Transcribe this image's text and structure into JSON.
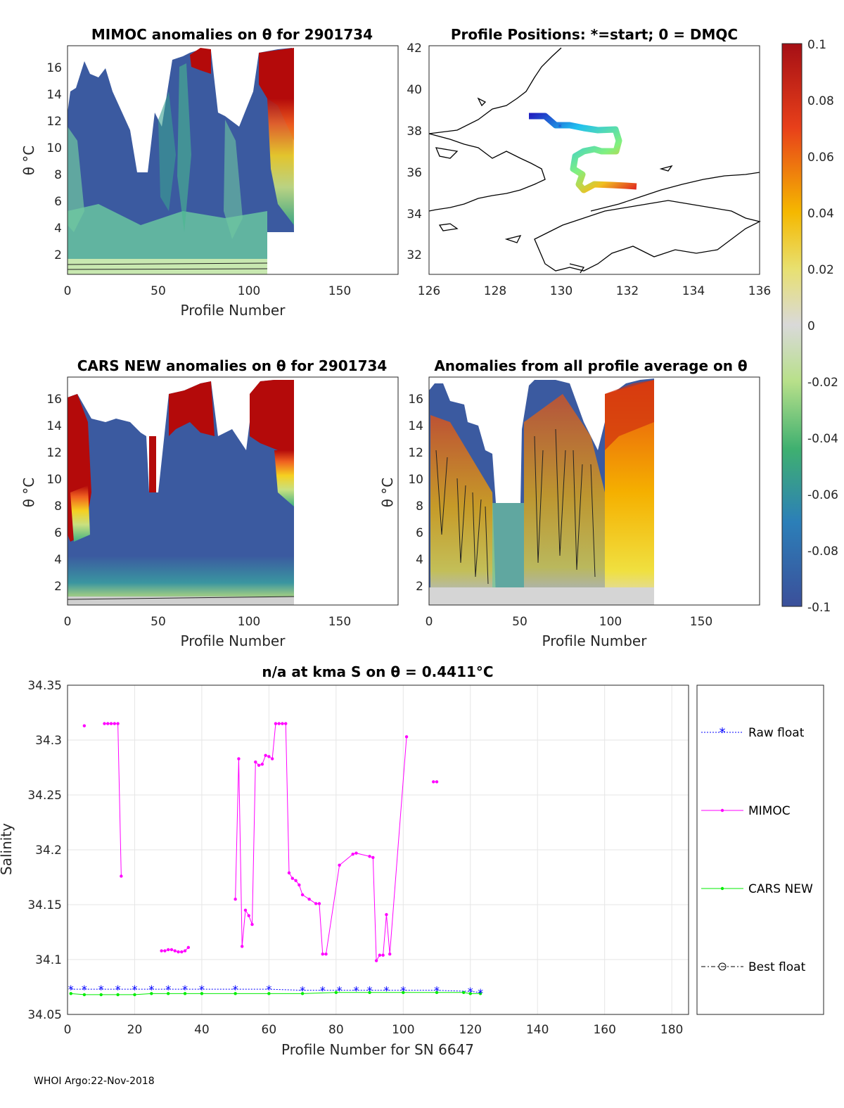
{
  "footer": "WHOI Argo:22-Nov-2018",
  "panel_mimoc": {
    "title": "MIMOC anomalies on θ  for 2901734",
    "xlabel": "Profile Number",
    "ylabel": "θ °C",
    "xticks": [
      "0",
      "50",
      "100",
      "150"
    ],
    "yticks": [
      "2",
      "4",
      "6",
      "8",
      "10",
      "12",
      "14",
      "16"
    ]
  },
  "panel_map": {
    "title": "Profile Positions: *=start; 0 = DMQC",
    "xticks": [
      "126",
      "128",
      "130",
      "132",
      "134",
      "136"
    ],
    "yticks": [
      "32",
      "34",
      "36",
      "38",
      "40",
      "42"
    ]
  },
  "panel_cars": {
    "title": "CARS NEW anomalies on θ for 2901734",
    "xlabel": "Profile Number",
    "ylabel": "θ °C",
    "xticks": [
      "0",
      "50",
      "100",
      "150"
    ],
    "yticks": [
      "2",
      "4",
      "6",
      "8",
      "10",
      "12",
      "14",
      "16"
    ]
  },
  "panel_avg": {
    "title": "Anomalies from all profile average on θ",
    "xlabel": "Profile Number",
    "ylabel": "θ °C",
    "xticks": [
      "0",
      "50",
      "100",
      "150"
    ],
    "yticks": [
      "2",
      "4",
      "6",
      "8",
      "10",
      "12",
      "14",
      "16"
    ]
  },
  "colorbar": {
    "ticks": [
      "0.1",
      "0.08",
      "0.06",
      "0.04",
      "0.02",
      "0",
      "-0.02",
      "-0.04",
      "-0.06",
      "-0.08",
      "-0.1"
    ]
  },
  "colors": {
    "deep_blue": "#3b5aa0",
    "red": "#b40a0a",
    "mimoc": "#ff00ff",
    "cars": "#00ee00",
    "raw": "#0000ff"
  },
  "chart_data": {
    "type": "line",
    "title": "n/a at kma S on θ = 0.4411°C",
    "xlabel": "Profile Number for SN 6647",
    "ylabel": "Salinity",
    "xlim": [
      0,
      185
    ],
    "ylim": [
      34.05,
      34.35
    ],
    "xticks": [
      "0",
      "20",
      "40",
      "60",
      "80",
      "100",
      "120",
      "140",
      "160",
      "180"
    ],
    "yticks": [
      "34.05",
      "34.1",
      "34.15",
      "34.2",
      "34.25",
      "34.3",
      "34.35"
    ],
    "legend": [
      "Raw float",
      "MIMOC",
      "CARS NEW",
      "Best float"
    ],
    "series": [
      {
        "name": "MIMOC",
        "segments": [
          {
            "x": [
              5
            ],
            "y": [
              34.313
            ]
          },
          {
            "x": [
              11,
              12,
              13,
              14,
              15,
              16
            ],
            "y": [
              34.315,
              34.315,
              34.315,
              34.315,
              34.315,
              34.176
            ]
          },
          {
            "x": [
              28,
              29,
              30,
              31,
              32,
              33,
              34,
              35,
              36
            ],
            "y": [
              34.108,
              34.108,
              34.109,
              34.109,
              34.108,
              34.107,
              34.107,
              34.108,
              34.111
            ]
          },
          {
            "x": [
              50,
              51,
              52,
              53,
              54,
              55,
              56,
              57,
              58,
              59,
              60,
              61,
              62,
              63,
              64,
              65,
              66,
              67,
              68,
              69,
              70,
              72,
              74,
              75,
              76,
              77,
              81,
              85,
              86,
              90,
              91,
              92,
              93,
              94,
              95,
              96,
              101
            ],
            "y": [
              34.155,
              34.283,
              34.112,
              34.145,
              34.14,
              34.132,
              34.28,
              34.277,
              34.278,
              34.286,
              34.285,
              34.283,
              34.315,
              34.315,
              34.315,
              34.315,
              34.179,
              34.174,
              34.172,
              34.168,
              34.159,
              34.155,
              34.151,
              34.151,
              34.105,
              34.105,
              34.186,
              34.196,
              34.197,
              34.194,
              34.193,
              34.099,
              34.104,
              34.104,
              34.141,
              34.105,
              34.303
            ]
          },
          {
            "x": [
              109,
              110
            ],
            "y": [
              34.262,
              34.262
            ]
          }
        ]
      },
      {
        "name": "CARS NEW",
        "x": [
          1,
          5,
          10,
          15,
          20,
          25,
          30,
          35,
          40,
          50,
          60,
          70,
          80,
          90,
          100,
          110,
          118,
          120,
          123
        ],
        "y": [
          34.069,
          34.068,
          34.068,
          34.068,
          34.068,
          34.069,
          34.069,
          34.069,
          34.069,
          34.069,
          34.069,
          34.069,
          34.07,
          34.07,
          34.07,
          34.07,
          34.07,
          34.069,
          34.069
        ]
      },
      {
        "name": "Raw float",
        "x": [
          1,
          5,
          10,
          15,
          20,
          25,
          30,
          35,
          40,
          50,
          60,
          70,
          76,
          81,
          86,
          90,
          95,
          100,
          110,
          120,
          123
        ],
        "y": [
          34.073,
          34.073,
          34.073,
          34.073,
          34.073,
          34.073,
          34.073,
          34.073,
          34.073,
          34.073,
          34.073,
          34.072,
          34.072,
          34.072,
          34.072,
          34.072,
          34.072,
          34.072,
          34.072,
          34.071,
          34.07
        ]
      }
    ]
  }
}
